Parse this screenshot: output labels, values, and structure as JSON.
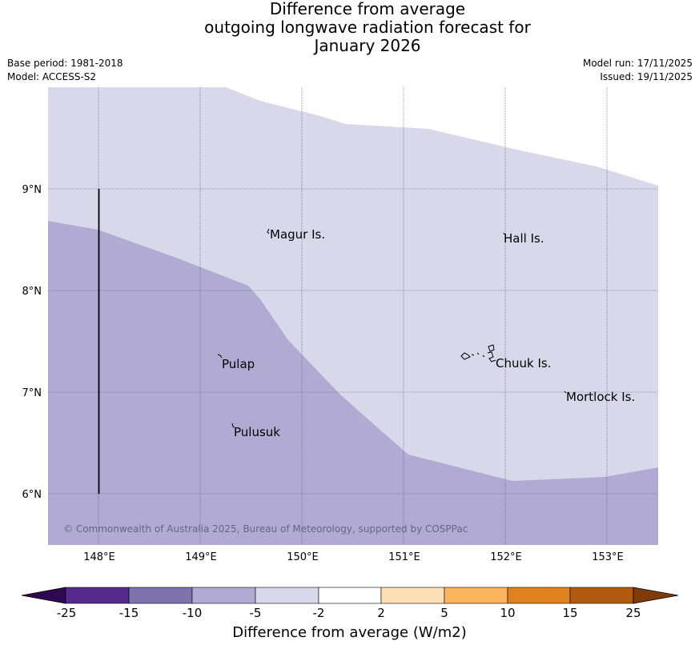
{
  "title": {
    "line1": "Difference from average",
    "line2": "outgoing longwave radiation forecast for",
    "line3": "January 2026"
  },
  "meta": {
    "base_period": "Base period: 1981-2018",
    "model": "Model: ACCESS-S2",
    "model_run": "Model run: 17/11/2025",
    "issued": "Issued: 19/11/2025"
  },
  "map": {
    "lon_range": [
      147.5,
      153.5
    ],
    "lat_range": [
      5.5,
      10.0
    ],
    "lon_ticks": [
      "148°E",
      "149°E",
      "150°E",
      "151°E",
      "152°E",
      "153°E"
    ],
    "lat_ticks": [
      "6°N",
      "7°N",
      "8°N",
      "9°N"
    ],
    "places": [
      "Magur Is.",
      "Hall Is.",
      "Pulap",
      "Chuuk Is.",
      "Mortlock Is.",
      "Pulusuk"
    ],
    "copyright": "© Commonwealth of Australia 2025, Bureau of Meteorology, supported by COSPPac",
    "colors": {
      "band_minus5_minus2": "#d8d8ea",
      "band_minus10_minus5": "#b1abd3",
      "grid": "#555577"
    }
  },
  "colorbar": {
    "label": "Difference from average (W/m2)",
    "ticks": [
      "-25",
      "-15",
      "-10",
      "-5",
      "-2",
      "2",
      "5",
      "10",
      "15",
      "25"
    ],
    "colors": [
      "#552a8c",
      "#7f73ae",
      "#b1abd3",
      "#d8d8ea",
      "#ffffff",
      "#fddfb5",
      "#fbb45e",
      "#df821d",
      "#b25a0f"
    ],
    "under_color": "#2d0a4f",
    "over_color": "#7f3c08"
  }
}
